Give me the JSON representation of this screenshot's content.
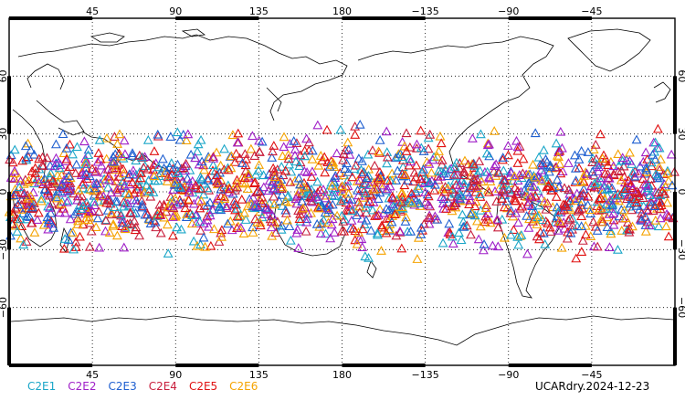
{
  "map": {
    "projection": "cylindrical equidistant",
    "lon_range": [
      0,
      360
    ],
    "lat_range": [
      -90,
      90
    ],
    "grid": true,
    "x_tick_labels": [
      "45",
      "90",
      "135",
      "180",
      "−135",
      "−90",
      "−45"
    ],
    "x_tick_lons": [
      45,
      90,
      135,
      180,
      225,
      270,
      315
    ],
    "y_tick_labels": [
      "60",
      "30",
      "0",
      "−30",
      "−60"
    ],
    "y_tick_lats": [
      60,
      30,
      0,
      -30,
      -60
    ]
  },
  "legend": {
    "items": [
      {
        "label": "C2E1",
        "color": "#1aa6c8"
      },
      {
        "label": "C2E2",
        "color": "#a020c8"
      },
      {
        "label": "C2E3",
        "color": "#1e5fd0"
      },
      {
        "label": "C2E4",
        "color": "#c81e3c"
      },
      {
        "label": "C2E5",
        "color": "#e01010"
      },
      {
        "label": "C2E6",
        "color": "#f5a300"
      }
    ]
  },
  "footer": {
    "stamp": "UCARdry.2024-12-23"
  },
  "chart_data": {
    "type": "scatter",
    "marker": "triangle-open",
    "title": "",
    "xlabel": "",
    "ylabel": "",
    "xlim": [
      0,
      360
    ],
    "ylim": [
      -90,
      90
    ],
    "series": [
      {
        "name": "C2E1",
        "lat_band": [
          -40,
          40
        ],
        "approx_count": 300
      },
      {
        "name": "C2E2",
        "lat_band": [
          -40,
          40
        ],
        "approx_count": 300
      },
      {
        "name": "C2E3",
        "lat_band": [
          -40,
          40
        ],
        "approx_count": 300
      },
      {
        "name": "C2E4",
        "lat_band": [
          -40,
          40
        ],
        "approx_count": 300
      },
      {
        "name": "C2E5",
        "lat_band": [
          -40,
          40
        ],
        "approx_count": 300
      },
      {
        "name": "C2E6",
        "lat_band": [
          -40,
          40
        ],
        "approx_count": 300
      }
    ]
  }
}
